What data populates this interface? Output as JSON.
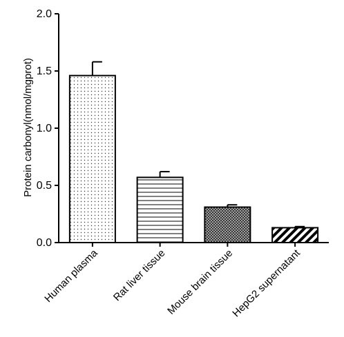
{
  "chart_data": {
    "type": "bar",
    "ylabel": "Protein carbonyl(nmol/mgprot)",
    "xlabel": "",
    "ylim": [
      0,
      2.0
    ],
    "yticks": [
      "0.0",
      "0.5",
      "1.0",
      "1.5",
      "2.0"
    ],
    "categories": [
      "Human plasma",
      "Rat liver tissue",
      "Mouse brain tissue",
      "HepG2 supernatant"
    ],
    "values": [
      1.46,
      0.57,
      0.31,
      0.13
    ],
    "errors": [
      0.12,
      0.05,
      0.02,
      0.01
    ],
    "bar_fills": [
      "dots",
      "horizontal-lines",
      "crosshatch",
      "diagonal-stripes"
    ],
    "grid": false,
    "legend": "none",
    "colors": {
      "axis": "#000000",
      "bar_edge": "#000000",
      "background": "#ffffff"
    }
  }
}
